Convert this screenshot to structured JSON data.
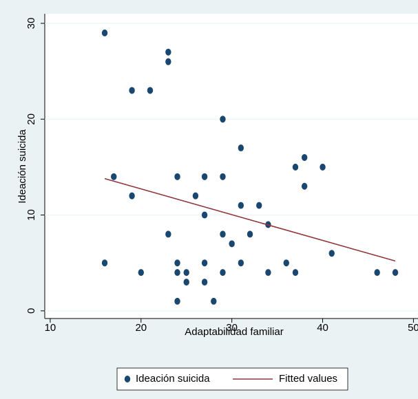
{
  "chart_data": {
    "type": "scatter",
    "xlabel": "Adaptabilidad familiar",
    "ylabel": "Ideación suicida",
    "xlim": [
      9.4,
      50.5
    ],
    "xticks": [
      10,
      20,
      30,
      40,
      50
    ],
    "ylim": [
      -0.8,
      31
    ],
    "yticks": [
      0,
      10,
      20,
      30
    ],
    "grid": true,
    "legend": "bottom",
    "series": [
      {
        "name": "Ideación suicida",
        "color": "#1a476f",
        "type": "scatter",
        "x": [
          16,
          16,
          17,
          19,
          19,
          20,
          21,
          23,
          23,
          23,
          24,
          24,
          24,
          24,
          25,
          25,
          26,
          27,
          27,
          27,
          27,
          28,
          29,
          29,
          29,
          29,
          30,
          31,
          31,
          31,
          32,
          33,
          34,
          34,
          36,
          37,
          37,
          38,
          38,
          40,
          41,
          46,
          48
        ],
        "values": [
          29,
          5,
          14,
          23,
          12,
          4,
          23,
          27,
          26,
          8,
          14,
          5,
          4,
          1,
          4,
          3,
          12,
          14,
          10,
          5,
          3,
          1,
          20,
          14,
          8,
          4,
          7,
          17,
          11,
          5,
          8,
          11,
          9,
          4,
          5,
          15,
          4,
          16,
          13,
          15,
          6,
          4,
          4
        ]
      },
      {
        "name": "Fitted values",
        "color": "#90353b",
        "type": "line",
        "x": [
          16,
          48
        ],
        "values": [
          13.8,
          5.2
        ]
      }
    ]
  }
}
